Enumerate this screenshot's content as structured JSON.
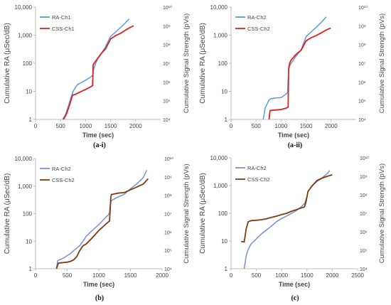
{
  "chart_data": [
    {
      "type": "line",
      "caption": "(a-i)",
      "xlabel": "Time (sec)",
      "ylabel": "Cumulative RA (μSec/dB)",
      "y2label": "Cumulative Signal Strength (pVs)",
      "xlim": [
        0,
        2500
      ],
      "xticks": [
        "0",
        "500",
        "1000",
        "1500",
        "2000"
      ],
      "ylim": [
        1,
        10000
      ],
      "yscale": "log",
      "yticks": [
        "1",
        "10",
        "100",
        "1,000",
        "10,000"
      ],
      "y2lim": [
        10000,
        10000000000
      ],
      "y2scale": "log",
      "y2ticks": [
        "10⁴",
        "10⁵",
        "10⁶",
        "10⁷",
        "10⁸",
        "10⁹",
        "10¹⁰"
      ],
      "grid": false,
      "legend": "top-left",
      "series": [
        {
          "name": "RA-Ch1",
          "color": "#5b9bd5",
          "axis": "left",
          "x": [
            540,
            600,
            650,
            700,
            750,
            800,
            850,
            900,
            1000,
            1100,
            1130,
            1145,
            1160,
            1200,
            1250,
            1300,
            1400,
            1500,
            1600,
            1700,
            1800,
            1870
          ],
          "y": [
            1,
            1.5,
            2.8,
            5.5,
            10,
            14,
            18,
            20,
            25,
            32,
            36,
            38,
            60,
            100,
            150,
            200,
            400,
            900,
            1300,
            1900,
            2800,
            3800
          ]
        },
        {
          "name": "CSS-Ch1",
          "color": "#e02020",
          "axis": "right",
          "x": [
            560,
            620,
            680,
            740,
            800,
            900,
            1000,
            1100,
            1140,
            1150,
            1170,
            1200,
            1300,
            1400,
            1500,
            1600,
            1700,
            1800,
            1900,
            1960
          ],
          "y": [
            10000,
            20000,
            60000,
            200000,
            220000,
            300000,
            400000,
            550000,
            650000,
            8000000,
            10000000,
            13000000,
            30000000,
            60000000,
            200000000,
            300000000,
            400000000,
            600000000,
            850000000,
            1000000000
          ]
        }
      ]
    },
    {
      "type": "line",
      "caption": "(a-ii)",
      "xlabel": "Time (sec)",
      "ylabel": "Cumulative RA (μSec/dB)",
      "y2label": "Cumulative Signal Strength (pVs)",
      "xlim": [
        0,
        2500
      ],
      "xticks": [
        "0",
        "500",
        "1000",
        "1500",
        "2000"
      ],
      "ylim": [
        1,
        10000
      ],
      "yscale": "log",
      "yticks": [
        "1",
        "10",
        "100",
        "1,000",
        "10,000"
      ],
      "y2lim": [
        10000,
        10000000000
      ],
      "y2scale": "log",
      "y2ticks": [
        "10⁴",
        "10⁵",
        "10⁶",
        "10⁷",
        "10⁸",
        "10⁹",
        "10¹⁰"
      ],
      "grid": false,
      "legend": "top-left",
      "series": [
        {
          "name": "RA-Ch2",
          "color": "#5b9bd5",
          "axis": "left",
          "x": [
            640,
            660,
            680,
            700,
            760,
            800,
            900,
            1000,
            1100,
            1130,
            1150,
            1170,
            1200,
            1300,
            1400,
            1500,
            1600,
            1700,
            1800,
            1900
          ],
          "y": [
            1,
            1.5,
            2.5,
            3,
            5,
            5.5,
            5.8,
            6,
            8,
            9,
            60,
            80,
            100,
            180,
            300,
            900,
            1300,
            1900,
            2800,
            4500
          ]
        },
        {
          "name": "CSS-Ch2",
          "color": "#e02020",
          "axis": "right",
          "x": [
            760,
            780,
            900,
            1000,
            1100,
            1140,
            1150,
            1170,
            1200,
            1300,
            1400,
            1500,
            1600,
            1700,
            1800,
            1900,
            1990
          ],
          "y": [
            10000,
            30000,
            32000,
            34000,
            40000,
            45000,
            5000000,
            10000000,
            15000000,
            30000000,
            50000000,
            160000000,
            230000000,
            300000000,
            420000000,
            600000000,
            750000000
          ]
        }
      ]
    },
    {
      "type": "line",
      "caption": "(b)",
      "xlabel": "Time (sec)",
      "ylabel": "Cumulative RA (μSec/dB)",
      "y2label": "Cumulative Signal Strength (pVs)",
      "xlim": [
        0,
        2000
      ],
      "xticks": [
        "0",
        "500",
        "1000",
        "1500",
        "2000"
      ],
      "ylim": [
        1,
        10000
      ],
      "yscale": "log",
      "yticks": [
        "1",
        "10",
        "100",
        "1,000",
        "10,000"
      ],
      "y2lim": [
        10000,
        10000000000
      ],
      "y2scale": "log",
      "y2ticks": [
        "10⁴",
        "10⁵",
        "10⁶",
        "10⁷",
        "10⁸",
        "10⁹",
        "10¹⁰"
      ],
      "grid": false,
      "legend": "top-left",
      "series": [
        {
          "name": "RA-Ch2",
          "color": "#7b8fd0",
          "axis": "left",
          "x": [
            330,
            350,
            400,
            450,
            500,
            550,
            600,
            650,
            700,
            750,
            800,
            900,
            1000,
            1100,
            1150,
            1170,
            1180,
            1200,
            1300,
            1400,
            1500,
            1600,
            1700,
            1760
          ],
          "y": [
            1,
            2,
            2.2,
            2.5,
            3,
            3.5,
            4.5,
            5.5,
            7,
            10,
            15,
            25,
            40,
            70,
            90,
            110,
            200,
            300,
            400,
            500,
            800,
            1200,
            2000,
            3800
          ]
        },
        {
          "name": "CSS-Ch2",
          "color": "#7a3b12",
          "axis": "right",
          "x": [
            330,
            360,
            400,
            450,
            500,
            550,
            600,
            650,
            700,
            750,
            800,
            900,
            1000,
            1100,
            1150,
            1170,
            1190,
            1200,
            1300,
            1400,
            1500,
            1600,
            1700,
            1780
          ],
          "y": [
            10000,
            20000,
            21000,
            22000,
            23000,
            25000,
            30000,
            45000,
            100000,
            180000,
            220000,
            500000,
            1200000,
            2500000,
            3500000,
            4000000,
            80000000,
            110000000,
            130000000,
            140000000,
            200000000,
            280000000,
            400000000,
            800000000
          ]
        }
      ]
    },
    {
      "type": "line",
      "caption": "(c)",
      "xlabel": "Time (sec)",
      "ylabel": "Cumulative RA (μSec/dB)",
      "y2label": "Cumulative Signal Strength (pVs)",
      "xlim": [
        0,
        2500
      ],
      "xticks": [
        "0",
        "500",
        "1000",
        "1500",
        "2000",
        "2500"
      ],
      "ylim": [
        1,
        10000
      ],
      "yscale": "log",
      "yticks": [
        "1",
        "10",
        "100",
        "1,000",
        "10,000"
      ],
      "y2lim": [
        10000,
        10000000000
      ],
      "y2scale": "log",
      "y2ticks": [
        "10⁴",
        "10⁵",
        "10⁶",
        "10⁷",
        "10⁸",
        "10⁹",
        "10¹⁰"
      ],
      "grid": false,
      "legend": "top-left",
      "series": [
        {
          "name": "RA-Ch2",
          "color": "#7b8fd0",
          "axis": "left",
          "x": [
            260,
            300,
            340,
            380,
            400,
            500,
            600,
            700,
            800,
            900,
            1000,
            1100,
            1200,
            1300,
            1400,
            1450,
            1500,
            1520,
            1600,
            1700,
            1800,
            1900,
            1950
          ],
          "y": [
            1,
            3,
            5,
            7,
            8,
            12,
            18,
            25,
            35,
            50,
            65,
            80,
            100,
            130,
            180,
            220,
            400,
            600,
            1000,
            1400,
            1900,
            2700,
            3500
          ]
        },
        {
          "name": "CSS-Ch2",
          "color": "#7a3b12",
          "axis": "right",
          "x": [
            200,
            260,
            300,
            340,
            400,
            500,
            600,
            700,
            800,
            900,
            1000,
            1100,
            1200,
            1300,
            1400,
            1450,
            1480,
            1520,
            1600,
            1700,
            1800,
            1900,
            2000
          ],
          "y": [
            300000,
            280000,
            1500000,
            3500000,
            4000000,
            4200000,
            4500000,
            5000000,
            6000000,
            7000000,
            8500000,
            10000000,
            13000000,
            16000000,
            20000000,
            22000000,
            40000000,
            150000000,
            300000000,
            600000000,
            800000000,
            1000000000,
            1200000000
          ]
        }
      ]
    }
  ]
}
